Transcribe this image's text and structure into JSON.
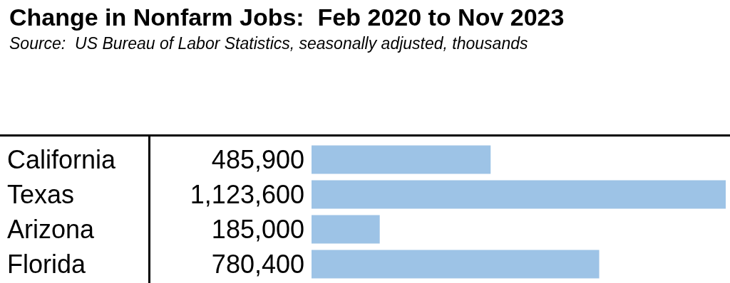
{
  "chart_data": {
    "type": "bar",
    "orientation": "horizontal",
    "title": "Change in Nonfarm Jobs:  Feb 2020 to Nov 2023",
    "subtitle": "Source:  US Bureau of Labor Statistics, seasonally adjusted, thousands",
    "categories": [
      "California",
      "Texas",
      "Arizona",
      "Florida"
    ],
    "values": [
      485900,
      1123600,
      185000,
      780400
    ],
    "value_labels": [
      "485,900",
      "1,123,600",
      "185,000",
      "780,400"
    ],
    "color": "#9dc3e6",
    "tick_labels": "y"
  }
}
